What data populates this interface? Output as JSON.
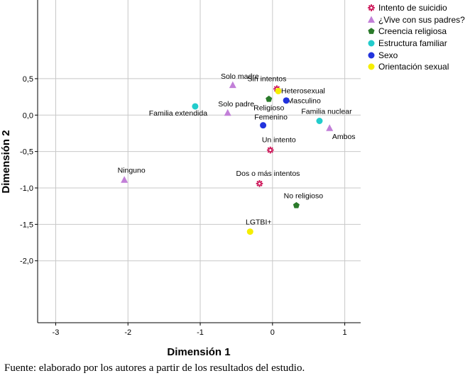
{
  "chart_data": {
    "type": "scatter",
    "xlabel": "Dimensión 1",
    "ylabel": "Dimensión 2",
    "xlim": [
      -3.25,
      1.22
    ],
    "ylim": [
      -2.85,
      1.58
    ],
    "x_ticks": [
      -3,
      -2,
      -1,
      0,
      1
    ],
    "x_tick_labels": [
      "-3",
      "-2",
      "-1",
      "0",
      "1"
    ],
    "y_ticks": [
      0.5,
      0.0,
      -0.5,
      -1.0,
      -1.5,
      -2.0
    ],
    "y_tick_labels": [
      "0,5",
      "0,0",
      "-0,5",
      "-1,0",
      "-1,5",
      "-2,0"
    ],
    "grid": true,
    "legend_position": "outside-top-right",
    "series": [
      {
        "name": "Intento de suicidio",
        "marker": "asterisk",
        "color": "#cc1155",
        "points": [
          {
            "label": "Sin intentos",
            "x": 0.06,
            "y": 0.36
          },
          {
            "label": "Un intento",
            "x": -0.03,
            "y": -0.48
          },
          {
            "label": "Dos o más intentos",
            "x": -0.18,
            "y": -0.94
          }
        ]
      },
      {
        "name": "¿Vive con sus padres?",
        "marker": "triangle",
        "color": "#c27fd8",
        "points": [
          {
            "label": "Solo madre",
            "x": -0.55,
            "y": 0.41
          },
          {
            "label": "Solo padre",
            "x": -0.62,
            "y": 0.03
          },
          {
            "label": "Ambos",
            "x": 0.79,
            "y": -0.18
          },
          {
            "label": "Ninguno",
            "x": -2.05,
            "y": -0.89
          }
        ]
      },
      {
        "name": "Creencia religiosa",
        "marker": "pentagon",
        "color": "#2a7a2a",
        "points": [
          {
            "label": "Religioso",
            "x": -0.05,
            "y": 0.22
          },
          {
            "label": "No religioso",
            "x": 0.33,
            "y": -1.24
          }
        ]
      },
      {
        "name": "Estructura familiar",
        "marker": "circle",
        "color": "#22cccc",
        "points": [
          {
            "label": "Familia extendida",
            "x": -1.07,
            "y": 0.12
          },
          {
            "label": "Familia nuclear",
            "x": 0.65,
            "y": -0.08
          }
        ]
      },
      {
        "name": "Sexo",
        "marker": "circle",
        "color": "#2233dd",
        "points": [
          {
            "label": "Masculino",
            "x": 0.19,
            "y": 0.2
          },
          {
            "label": "Femenino",
            "x": -0.13,
            "y": -0.14
          }
        ]
      },
      {
        "name": "Orientación sexual",
        "marker": "circle",
        "color": "#f5ee00",
        "points": [
          {
            "label": "Heterosexual",
            "x": 0.08,
            "y": 0.33
          },
          {
            "label": "LGTBI+",
            "x": -0.31,
            "y": -1.6
          }
        ]
      }
    ]
  },
  "caption": "Fuente: elaborado por los autores a partir de los resultados del estudio."
}
